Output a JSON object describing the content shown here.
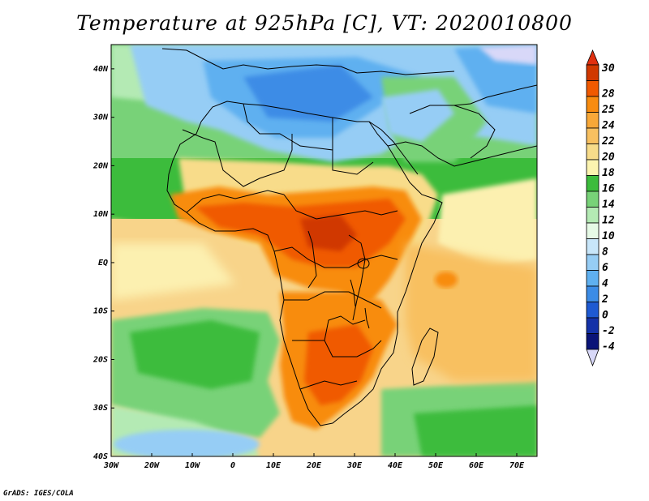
{
  "title": "Temperature at 925hPa [C], VT: 2020010800",
  "credit": "GrADS: IGES/COLA",
  "lat_labels": [
    "40N",
    "30N",
    "20N",
    "10N",
    "EQ",
    "10S",
    "20S",
    "30S",
    "40S"
  ],
  "lon_labels": [
    "30W",
    "20W",
    "10W",
    "0",
    "10E",
    "20E",
    "30E",
    "40E",
    "50E",
    "60E",
    "70E"
  ],
  "colorbar": {
    "levels": [
      "30",
      "28",
      "25",
      "24",
      "22",
      "20",
      "18",
      "16",
      "14",
      "12",
      "10",
      "8",
      "6",
      "4",
      "2",
      "0",
      "-2",
      "-4"
    ],
    "colors": [
      "#d03800",
      "#f05a00",
      "#f88c10",
      "#f8a838",
      "#f8c060",
      "#f8dc8a",
      "#fcf4b0",
      "#3cbc3c",
      "#78d278",
      "#b4eab4",
      "#e6fae6",
      "#c8e6fa",
      "#96cdf5",
      "#5fb0f0",
      "#3c8ce6",
      "#1e5ad2",
      "#1432a8",
      "#0a1478"
    ],
    "top_color": "#e03010",
    "bottom_color": "#d8d8f8"
  },
  "map": {
    "lat_range": [
      -40,
      45
    ],
    "lon_range": [
      -30,
      75
    ],
    "colors": {
      "ocean_warm": "#f8d48a",
      "ocean_pale": "#fcf0b0",
      "ocean_green": "#3cbc3c",
      "ocean_light_green": "#8cd88c",
      "north_cool": "#96cdf5",
      "north_cold": "#5fb0f0",
      "hot_core": "#f05a00",
      "hot": "#f88c10",
      "warm": "#f8b050",
      "borders": "#000000"
    }
  }
}
